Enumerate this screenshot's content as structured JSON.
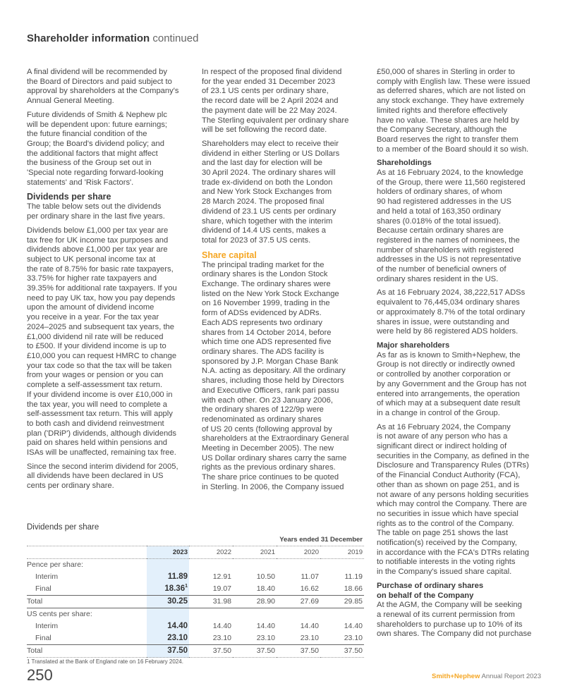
{
  "header": {
    "title_bold": "Shareholder information",
    "title_rest": "continued"
  },
  "columns": [
    [
      {
        "type": "p",
        "lines": [
          "A final dividend will be recommended by",
          "the Board of Directors and paid subject to",
          "approval by shareholders at the Company's",
          "Annual General Meeting."
        ]
      },
      {
        "type": "p",
        "lines": [
          "Future dividends of Smith & Nephew plc",
          "will be dependent upon: future earnings;",
          "the future financial condition of the",
          "Group; the Board's dividend policy; and",
          "the additional factors that might affect",
          "the business of the Group set out in",
          "'Special note regarding forward-looking",
          "statements' and 'Risk Factors'."
        ]
      },
      {
        "type": "h",
        "style": "big",
        "text": "Dividends per share"
      },
      {
        "type": "p",
        "lines": [
          "The table below sets out the dividends",
          "per ordinary share in the last five years."
        ]
      },
      {
        "type": "p",
        "lines": [
          "Dividends below £1,000 per tax year are",
          "tax free for UK income tax purposes and",
          "dividends above £1,000 per tax year are",
          "subject to UK personal income tax at",
          "the rate of 8.75% for basic rate taxpayers,",
          "33.75% for higher rate taxpayers and",
          "39.35% for additional rate taxpayers. If you",
          "need to pay UK tax, how you pay depends",
          "upon the amount of dividend income",
          "you receive in a year. For the tax year",
          "2024–2025 and subsequent tax years, the",
          "£1,000 dividend nil rate will be reduced",
          "to £500. If your dividend income is up to",
          "£10,000 you can request HMRC to change",
          "your tax code so that the tax will be taken",
          "from your wages or pension or you can",
          "complete a self-assessment tax return.",
          "If your dividend income is over £10,000 in",
          "the tax year, you will need to complete a",
          "self-assessment tax return. This will apply",
          "to both cash and dividend reinvestment",
          "plan ('DRiP') dividends, although dividends",
          "paid on shares held within pensions and",
          "ISAs will be unaffected, remaining tax free."
        ]
      },
      {
        "type": "p",
        "lines": [
          "Since the second interim dividend for 2005,",
          "all dividends have been declared in US",
          "cents per ordinary share."
        ]
      }
    ],
    [
      {
        "type": "p",
        "lines": [
          "In respect of the proposed final dividend",
          "for the year ended 31 December 2023",
          "of 23.1 US cents per ordinary share,",
          "the record date will be 2 April 2024 and",
          "the payment date will be 22 May 2024.",
          "The Sterling equivalent per ordinary share",
          "will be set following the record date."
        ]
      },
      {
        "type": "p",
        "lines": [
          "Shareholders may elect to receive their",
          "dividend in either Sterling or US Dollars",
          "and the last day for election will be",
          "30 April 2024. The ordinary shares will",
          "trade ex-dividend on both the London",
          "and New York Stock Exchanges from",
          "28 March 2024. The proposed final",
          "dividend of 23.1 US cents per ordinary",
          "share, which together with the interim",
          "dividend of 14.4 US cents, makes a",
          "total for 2023 of 37.5 US cents."
        ]
      },
      {
        "type": "h",
        "style": "big orange",
        "text": "Share capital"
      },
      {
        "type": "p",
        "lines": [
          "The principal trading market for the",
          "ordinary shares is the London Stock",
          "Exchange. The ordinary shares were",
          "listed on the New York Stock Exchange",
          "on 16 November 1999, trading in the",
          "form of ADSs evidenced by ADRs.",
          "Each ADS represents two ordinary",
          "shares from 14 October 2014, before",
          "which time one ADS represented five",
          "ordinary shares. The ADS facility is",
          "sponsored by J.P. Morgan Chase Bank",
          "N.A. acting as depositary. All the ordinary",
          "shares, including those held by Directors",
          "and Executive Officers, rank pari passu",
          "with each other. On 23 January 2006,",
          "the ordinary shares of 122/9p were",
          "redenominated as ordinary shares",
          "of US 20 cents (following approval by",
          "shareholders at the Extraordinary General",
          "Meeting in December 2005). The new",
          "US Dollar ordinary shares carry the same",
          "rights as the previous ordinary shares.",
          "The share price continues to be quoted",
          "in Sterling. In 2006, the Company issued"
        ]
      }
    ],
    [
      {
        "type": "p",
        "lines": [
          "£50,000 of shares in Sterling in order to",
          "comply with English law. These were issued",
          "as deferred shares, which are not listed on",
          "any stock exchange. They have extremely",
          "limited rights and therefore effectively",
          "have no value. These shares are held by",
          "the Company Secretary, although the",
          "Board reserves the right to transfer them",
          "to a member of the Board should it so wish."
        ]
      },
      {
        "type": "h",
        "style": "",
        "text": "Shareholdings"
      },
      {
        "type": "p",
        "lines": [
          "As at 16 February 2024, to the knowledge",
          "of the Group, there were 11,560 registered",
          "holders of ordinary shares, of whom",
          "90 had registered addresses in the US",
          "and held a total of 163,350 ordinary",
          "shares (0.018% of the total issued).",
          "Because certain ordinary shares are",
          "registered in the names of nominees, the",
          "number of shareholders with registered",
          "addresses in the US is not representative",
          "of the number of beneficial owners of",
          "ordinary shares resident in the US."
        ]
      },
      {
        "type": "p",
        "lines": [
          "As at 16 February 2024, 38,222,517 ADSs",
          "equivalent to 76,445,034 ordinary shares",
          "or approximately 8.7% of the total ordinary",
          "shares in issue, were outstanding and",
          "were held by 86 registered ADS holders."
        ]
      },
      {
        "type": "h",
        "style": "",
        "text": "Major shareholders"
      },
      {
        "type": "p",
        "lines": [
          "As far as is known to Smith+Nephew, the",
          "Group is not directly or indirectly owned",
          "or controlled by another corporation or",
          "by any Government and the Group has not",
          "entered into arrangements, the operation",
          "of which may at a subsequent date result",
          "in a change in control of the Group."
        ]
      },
      {
        "type": "p",
        "lines": [
          "As at 16 February 2024, the Company",
          "is not aware of any person who has a",
          "significant direct or indirect holding of",
          "securities in the Company, as defined in the",
          "Disclosure and Transparency Rules (DTRs)",
          "of the Financial Conduct Authority (FCA),",
          "other than as shown on page 251, and is",
          "not aware of any persons holding securities",
          "which may control the Company. There are",
          "no securities in issue which have special",
          "rights as to the control of the Company.",
          "The table on page 251 shows the last",
          "notification(s) received by the Company,",
          "in accordance with the FCA's DTRs relating",
          "to notifiable interests in the voting rights",
          "in the Company's issued share capital."
        ]
      },
      {
        "type": "h",
        "style": "",
        "text": "Purchase of ordinary shares"
      },
      {
        "type": "h",
        "style": "",
        "text": "on behalf of the Company"
      },
      {
        "type": "p",
        "lines": [
          "At the AGM, the Company will be seeking",
          "a renewal of its current permission from",
          "shareholders to purchase up to 10% of its",
          "own shares. The Company did not purchase"
        ]
      }
    ]
  ],
  "table": {
    "title": "Dividends per share",
    "period_header": "Years ended 31 December",
    "years": [
      "2023",
      "2022",
      "2021",
      "2020",
      "2019"
    ],
    "sections": [
      {
        "label": "Pence per share:",
        "rows": [
          {
            "label": "Interim",
            "values": [
              "11.89",
              "12.91",
              "10.50",
              "11.07",
              "11.19"
            ]
          },
          {
            "label": "Final",
            "values": [
              "18.36",
              "19.07",
              "18.40",
              "16.62",
              "18.66"
            ],
            "footnote_mark": "1"
          }
        ],
        "total": {
          "label": "Total",
          "values": [
            "30.25",
            "31.98",
            "28.90",
            "27.69",
            "29.85"
          ]
        }
      },
      {
        "label": "US cents per share:",
        "rows": [
          {
            "label": "Interim",
            "values": [
              "14.40",
              "14.40",
              "14.40",
              "14.40",
              "14.40"
            ]
          },
          {
            "label": "Final",
            "values": [
              "23.10",
              "23.10",
              "23.10",
              "23.10",
              "23.10"
            ]
          }
        ],
        "total": {
          "label": "Total",
          "values": [
            "37.50",
            "37.50",
            "37.50",
            "37.50",
            "37.50"
          ]
        }
      }
    ],
    "footnote": "1   Translated at the Bank of England rate on 16 February 2024.",
    "highlight_color": "#e3f0fb"
  },
  "footer": {
    "page_number": "250",
    "brand": "Smith+Nephew",
    "report": "Annual Report 2023",
    "brand_color": "#f5a623"
  }
}
